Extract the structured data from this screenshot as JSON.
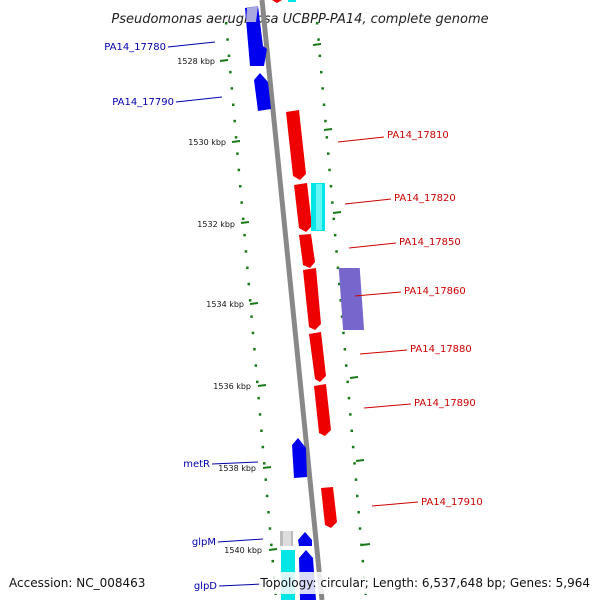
{
  "title": "Pseudomonas aeruginosa UCBPP-PA14, complete genome",
  "footer": {
    "accession": "Accession: NC_008463",
    "summary": "Topology: circular; Length: 6,537,648 bp; Genes: 5,964"
  },
  "colors": {
    "forward_gene": "#0000ee",
    "reverse_gene": "#ee0000",
    "cyan_feature": "#00e5e5",
    "purple_feature": "#7766cc",
    "grey_feature": "#bbbbbb",
    "backbone": "#888888",
    "tick": "#1a7a1a",
    "left_label": "#0000aa",
    "right_label": "#cc0000"
  },
  "kbp_ticks": [
    {
      "label": "1528 kbp",
      "pos": 1528
    },
    {
      "label": "1530 kbp",
      "pos": 1530
    },
    {
      "label": "1532 kbp",
      "pos": 1532
    },
    {
      "label": "1534 kbp",
      "pos": 1534
    },
    {
      "label": "1536 kbp",
      "pos": 1536
    },
    {
      "label": "1538 kbp",
      "pos": 1538
    },
    {
      "label": "1540 kbp",
      "pos": 1540
    }
  ],
  "left_genes": [
    {
      "name": "PA14_17780"
    },
    {
      "name": "PA14_17790"
    },
    {
      "name": "metR"
    },
    {
      "name": "glpM"
    },
    {
      "name": "glpD"
    }
  ],
  "right_genes": [
    {
      "name": "PA14_17810"
    },
    {
      "name": "PA14_17820"
    },
    {
      "name": "PA14_17850"
    },
    {
      "name": "PA14_17860"
    },
    {
      "name": "PA14_17880"
    },
    {
      "name": "PA14_17890"
    },
    {
      "name": "PA14_17910"
    }
  ]
}
